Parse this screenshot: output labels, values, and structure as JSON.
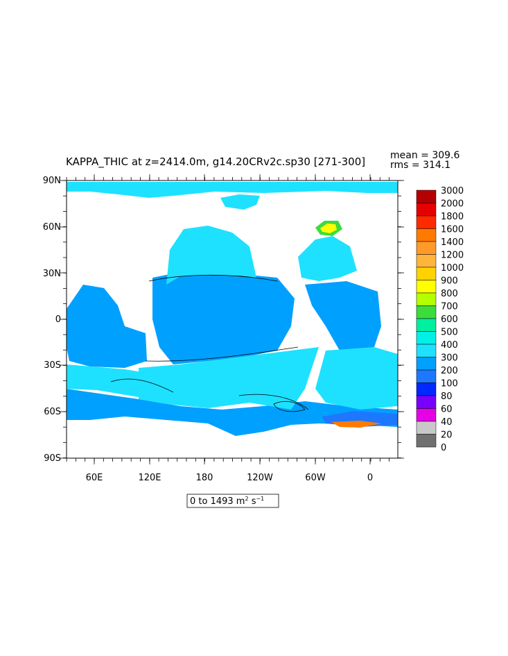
{
  "title": "KAPPA_THIC at z=2414.0m, g14.20CRv2c.sp30 [271-300]",
  "stats": {
    "mean": "mean = 309.6",
    "rms": "rms = 314.1"
  },
  "range_box": {
    "prefix": "0 to 1493 m",
    "sup1": "2",
    "mid": " s",
    "sup2": "−1"
  },
  "axes": {
    "y_ticks": [
      "90N",
      "60N",
      "30N",
      "0",
      "30S",
      "60S",
      "90S"
    ],
    "x_ticks": [
      "60E",
      "120E",
      "180",
      "120W",
      "60W",
      "0"
    ]
  },
  "colorbar": {
    "labels": [
      "3000",
      "2000",
      "1800",
      "1600",
      "1400",
      "1200",
      "1000",
      "900",
      "800",
      "700",
      "600",
      "500",
      "400",
      "300",
      "200",
      "100",
      "80",
      "60",
      "40",
      "20",
      "0"
    ],
    "colors": [
      "#b40000",
      "#e60000",
      "#ff2a00",
      "#ff7a00",
      "#ff9a28",
      "#ffb43c",
      "#ffd200",
      "#ffff00",
      "#b4ff00",
      "#3cdc3c",
      "#00f0a0",
      "#00f0e6",
      "#1ee1ff",
      "#00a0ff",
      "#1e78ff",
      "#0028ff",
      "#7800ff",
      "#e600e6",
      "#c8c8c8",
      "#707070"
    ]
  },
  "fill_colors": {
    "ocean_main": "#1ee1ff",
    "ocean_300": "#00a0ff",
    "ocean_200": "#1e78ff",
    "land": "#ffffff"
  }
}
